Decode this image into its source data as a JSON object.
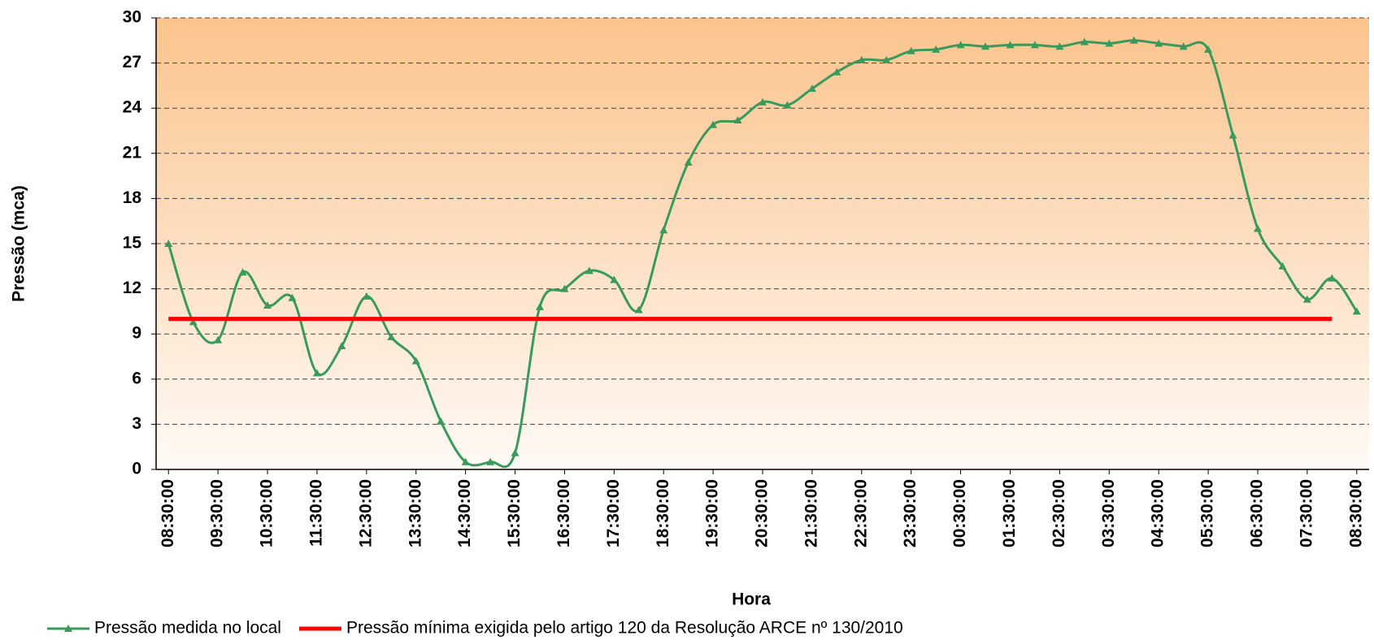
{
  "chart_data": {
    "type": "line",
    "x_label": "Hora",
    "y_label": "Pressão (mca)",
    "categories": [
      "08:30:00",
      null,
      "09:30:00",
      null,
      "10:30:00",
      null,
      "11:30:00",
      null,
      "12:30:00",
      null,
      "13:30:00",
      null,
      "14:30:00",
      null,
      "15:30:00",
      null,
      "16:30:00",
      null,
      "17:30:00",
      null,
      "18:30:00",
      null,
      "19:30:00",
      null,
      "20:30:00",
      null,
      "21:30:00",
      null,
      "22:30:00",
      null,
      "23:30:00",
      null,
      "00:30:00",
      null,
      "01:30:00",
      null,
      "02:30:00",
      null,
      "03:30:00",
      null,
      "04:30:00",
      null,
      "05:30:00",
      null,
      "06:30:00",
      null,
      "07:30:00",
      null,
      "08:30:00"
    ],
    "series": [
      {
        "name": "Pressão medida no local",
        "color": "#3a9a5c",
        "marker": "triangle",
        "smooth": true,
        "values": [
          15.0,
          9.8,
          8.6,
          13.1,
          10.9,
          11.4,
          6.4,
          8.2,
          11.5,
          8.8,
          7.2,
          3.2,
          0.5,
          0.5,
          1.1,
          10.8,
          12.0,
          13.2,
          12.6,
          10.6,
          15.9,
          20.4,
          22.9,
          23.2,
          24.4,
          24.2,
          25.3,
          26.4,
          27.2,
          27.2,
          27.8,
          27.9,
          28.2,
          28.1,
          28.2,
          28.2,
          28.1,
          28.4,
          28.3,
          28.5,
          28.3,
          28.1,
          27.9,
          22.2,
          16.0,
          13.5,
          11.3,
          12.7,
          10.5
        ]
      },
      {
        "name": "Pressão mínima exigida pelo artigo 120 da Resolução ARCE nº 130/2010",
        "color": "#ff0000",
        "marker": "none",
        "smooth": false,
        "values": [
          10,
          10,
          10,
          10,
          10,
          10,
          10,
          10,
          10,
          10,
          10,
          10,
          10,
          10,
          10,
          10,
          10,
          10,
          10,
          10,
          10,
          10,
          10,
          10,
          10,
          10,
          10,
          10,
          10,
          10,
          10,
          10,
          10,
          10,
          10,
          10,
          10,
          10,
          10,
          10,
          10,
          10,
          10,
          10,
          10,
          10,
          10,
          10,
          null
        ]
      }
    ],
    "ylim": [
      0,
      30
    ],
    "yticks": [
      0,
      3,
      6,
      9,
      12,
      15,
      18,
      21,
      24,
      27,
      30
    ],
    "grid": true,
    "legend": "bottom"
  }
}
